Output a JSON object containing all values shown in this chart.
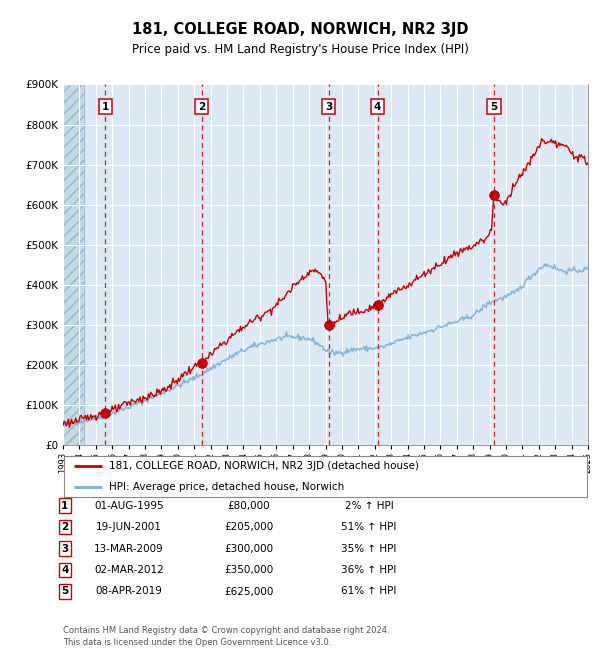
{
  "title": "181, COLLEGE ROAD, NORWICH, NR2 3JD",
  "subtitle": "Price paid vs. HM Land Registry's House Price Index (HPI)",
  "x_start_year": 1993,
  "x_end_year": 2025,
  "y_min": 0,
  "y_max": 900000,
  "y_ticks": [
    0,
    100000,
    200000,
    300000,
    400000,
    500000,
    600000,
    700000,
    800000,
    900000
  ],
  "y_tick_labels": [
    "£0",
    "£100K",
    "£200K",
    "£300K",
    "£400K",
    "£500K",
    "£600K",
    "£700K",
    "£800K",
    "£900K"
  ],
  "sale_dates_num": [
    1995.58,
    2001.46,
    2009.19,
    2012.17,
    2019.27
  ],
  "sale_prices": [
    80000,
    205000,
    300000,
    350000,
    625000
  ],
  "sale_labels": [
    "1",
    "2",
    "3",
    "4",
    "5"
  ],
  "hpi_line_color": "#7bafd4",
  "price_line_color": "#cc0000",
  "bg_color": "#dce8f3",
  "hatch_color": "#b8ccd8",
  "grid_color": "#ffffff",
  "legend_label_red": "181, COLLEGE ROAD, NORWICH, NR2 3JD (detached house)",
  "legend_label_blue": "HPI: Average price, detached house, Norwich",
  "table_rows": [
    [
      "1",
      "01-AUG-1995",
      "£80,000",
      "2% ↑ HPI"
    ],
    [
      "2",
      "19-JUN-2001",
      "£205,000",
      "51% ↑ HPI"
    ],
    [
      "3",
      "13-MAR-2009",
      "£300,000",
      "35% ↑ HPI"
    ],
    [
      "4",
      "02-MAR-2012",
      "£350,000",
      "36% ↑ HPI"
    ],
    [
      "5",
      "08-APR-2019",
      "£625,000",
      "61% ↑ HPI"
    ]
  ],
  "footer_text": "Contains HM Land Registry data © Crown copyright and database right 2024.\nThis data is licensed under the Open Government Licence v3.0."
}
